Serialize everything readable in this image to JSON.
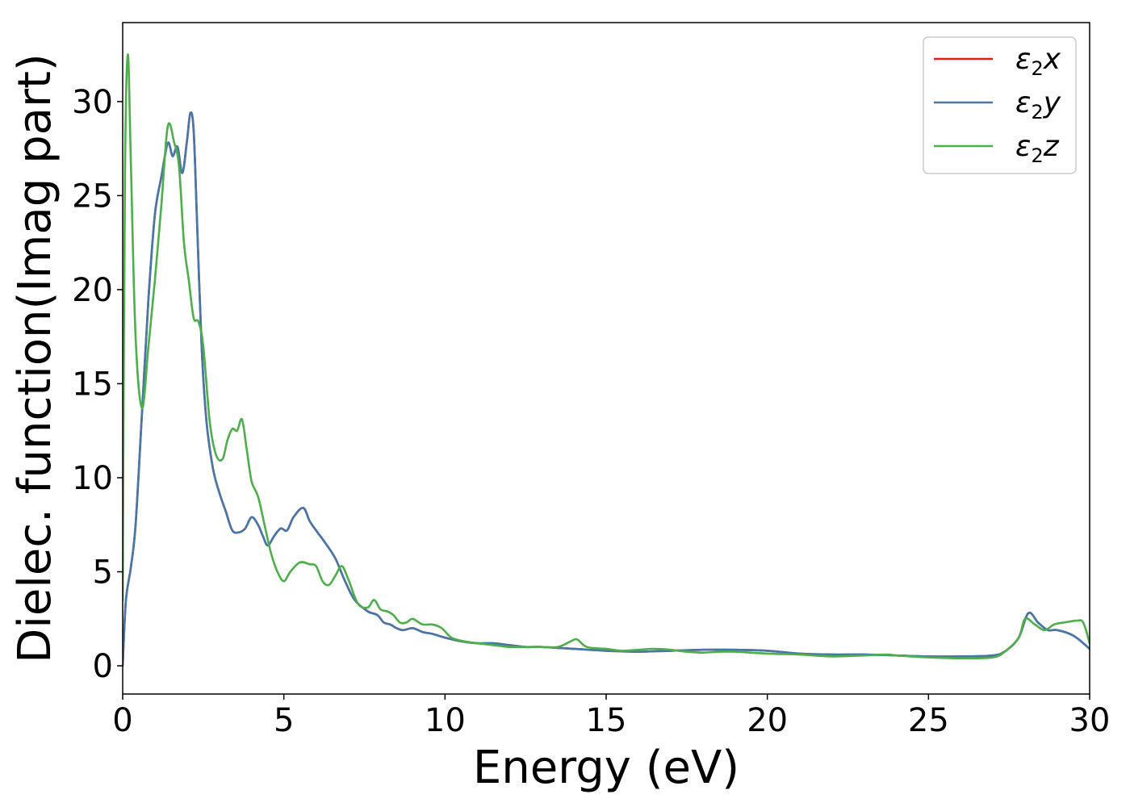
{
  "chart_data": {
    "type": "line",
    "xlabel": "Energy (eV)",
    "ylabel": "Dielec. function(Imag part)",
    "xlim": [
      0,
      30
    ],
    "ylim": [
      -1.5,
      34.2
    ],
    "xticks": [
      0,
      5,
      10,
      15,
      20,
      25,
      30
    ],
    "yticks": [
      0,
      5,
      10,
      15,
      20,
      25,
      30
    ],
    "grid": false,
    "legend_position": "top-right",
    "series": [
      {
        "name": "ε₂x",
        "legend_base": "ε",
        "legend_sub": "2",
        "legend_suffix": "x",
        "color": "#e41a1c",
        "x": [
          0,
          0.1,
          0.25,
          0.4,
          0.6,
          0.8,
          1.0,
          1.2,
          1.4,
          1.55,
          1.7,
          1.85,
          2.0,
          2.1,
          2.2,
          2.3,
          2.45,
          2.6,
          2.8,
          3.0,
          3.2,
          3.4,
          3.6,
          3.8,
          4.0,
          4.2,
          4.35,
          4.5,
          4.7,
          4.9,
          5.1,
          5.3,
          5.6,
          5.8,
          6.0,
          6.3,
          6.6,
          6.9,
          7.2,
          7.6,
          7.9,
          8.1,
          8.3,
          8.5,
          8.7,
          9.0,
          9.3,
          9.6,
          10.0,
          10.5,
          11.0,
          11.5,
          12.0,
          12.5,
          13.0,
          14.0,
          15.0,
          16.0,
          17.0,
          18.0,
          19.0,
          20.0,
          21.0,
          22.0,
          23.0,
          24.0,
          25.0,
          26.0,
          27.0,
          27.4,
          27.8,
          28.1,
          28.4,
          28.7,
          29.0,
          29.5,
          30.0
        ],
        "values": [
          0,
          3.5,
          5.2,
          7.5,
          13.5,
          19.5,
          24,
          26,
          27.8,
          27.1,
          27.6,
          26.2,
          28,
          29.4,
          28.5,
          24,
          17,
          13,
          10.5,
          9.2,
          8.2,
          7.2,
          7.1,
          7.3,
          7.9,
          7.5,
          6.9,
          6.4,
          6.9,
          7.3,
          7.2,
          7.9,
          8.4,
          7.7,
          7.2,
          6.5,
          5.7,
          4.5,
          3.5,
          2.9,
          2.7,
          2.3,
          2.2,
          2.0,
          1.9,
          2.0,
          1.8,
          1.7,
          1.5,
          1.3,
          1.2,
          1.2,
          1.1,
          1.0,
          1.0,
          0.9,
          0.8,
          0.75,
          0.8,
          0.85,
          0.85,
          0.8,
          0.65,
          0.6,
          0.6,
          0.55,
          0.5,
          0.5,
          0.55,
          0.8,
          1.5,
          2.8,
          2.3,
          1.9,
          1.9,
          1.6,
          0.9
        ]
      },
      {
        "name": "ε₂y",
        "legend_base": "ε",
        "legend_sub": "2",
        "legend_suffix": "y",
        "color": "#4477aa",
        "x": [
          0,
          0.1,
          0.25,
          0.4,
          0.6,
          0.8,
          1.0,
          1.2,
          1.4,
          1.55,
          1.7,
          1.85,
          2.0,
          2.1,
          2.2,
          2.3,
          2.45,
          2.6,
          2.8,
          3.0,
          3.2,
          3.4,
          3.6,
          3.8,
          4.0,
          4.2,
          4.35,
          4.5,
          4.7,
          4.9,
          5.1,
          5.3,
          5.6,
          5.8,
          6.0,
          6.3,
          6.6,
          6.9,
          7.2,
          7.6,
          7.9,
          8.1,
          8.3,
          8.5,
          8.7,
          9.0,
          9.3,
          9.6,
          10.0,
          10.5,
          11.0,
          11.5,
          12.0,
          12.5,
          13.0,
          14.0,
          15.0,
          16.0,
          17.0,
          18.0,
          19.0,
          20.0,
          21.0,
          22.0,
          23.0,
          24.0,
          25.0,
          26.0,
          27.0,
          27.4,
          27.8,
          28.1,
          28.4,
          28.7,
          29.0,
          29.5,
          30.0
        ],
        "values": [
          0,
          3.5,
          5.2,
          7.5,
          13.5,
          19.5,
          24,
          26,
          27.8,
          27.1,
          27.6,
          26.2,
          28,
          29.4,
          28.5,
          24,
          17,
          13,
          10.5,
          9.2,
          8.2,
          7.2,
          7.1,
          7.3,
          7.9,
          7.5,
          6.9,
          6.4,
          6.9,
          7.3,
          7.2,
          7.9,
          8.4,
          7.7,
          7.2,
          6.5,
          5.7,
          4.5,
          3.5,
          2.9,
          2.7,
          2.3,
          2.2,
          2.0,
          1.9,
          2.0,
          1.8,
          1.7,
          1.5,
          1.3,
          1.2,
          1.2,
          1.1,
          1.0,
          1.0,
          0.9,
          0.8,
          0.75,
          0.8,
          0.85,
          0.85,
          0.8,
          0.65,
          0.6,
          0.6,
          0.55,
          0.5,
          0.5,
          0.55,
          0.8,
          1.5,
          2.8,
          2.3,
          1.9,
          1.9,
          1.6,
          0.9
        ]
      },
      {
        "name": "ε₂z",
        "legend_base": "ε",
        "legend_sub": "2",
        "legend_suffix": "z",
        "color": "#4daf4a",
        "x": [
          0,
          0.07,
          0.16,
          0.25,
          0.4,
          0.6,
          0.8,
          1.0,
          1.2,
          1.4,
          1.6,
          1.75,
          1.9,
          2.05,
          2.2,
          2.35,
          2.5,
          2.7,
          2.9,
          3.1,
          3.25,
          3.4,
          3.55,
          3.7,
          3.85,
          4.0,
          4.2,
          4.4,
          4.6,
          4.8,
          5.0,
          5.2,
          5.5,
          5.8,
          6.0,
          6.2,
          6.4,
          6.6,
          6.8,
          7.0,
          7.3,
          7.6,
          7.8,
          8.0,
          8.2,
          8.4,
          8.6,
          8.8,
          9.0,
          9.3,
          9.6,
          9.9,
          10.2,
          10.6,
          11.0,
          11.5,
          12.0,
          12.5,
          13.0,
          13.5,
          13.9,
          14.1,
          14.4,
          15.0,
          15.5,
          16.0,
          16.5,
          17.0,
          17.5,
          18.0,
          18.5,
          19.0,
          20.0,
          21.0,
          22.0,
          23.0,
          23.7,
          24.0,
          25.0,
          26.0,
          27.0,
          27.4,
          27.8,
          28.0,
          28.3,
          28.6,
          28.9,
          29.2,
          29.6,
          29.8,
          30.0
        ],
        "values": [
          3.5,
          26,
          32.5,
          27,
          17.5,
          13.7,
          17,
          20.5,
          24.5,
          28.7,
          27.8,
          26.5,
          22.5,
          20.5,
          18.5,
          18.3,
          17,
          13,
          11.2,
          11.0,
          12.0,
          12.6,
          12.5,
          13.1,
          11.5,
          9.8,
          9.0,
          7.5,
          6.0,
          5.0,
          4.5,
          5.0,
          5.5,
          5.4,
          5.3,
          4.5,
          4.3,
          4.8,
          5.3,
          4.6,
          3.3,
          3.1,
          3.5,
          3.0,
          2.9,
          2.7,
          2.3,
          2.3,
          2.5,
          2.2,
          2.2,
          2.0,
          1.5,
          1.3,
          1.2,
          1.1,
          1.0,
          1.0,
          1.0,
          1.0,
          1.3,
          1.4,
          1.0,
          0.9,
          0.8,
          0.85,
          0.9,
          0.85,
          0.75,
          0.7,
          0.75,
          0.75,
          0.65,
          0.6,
          0.5,
          0.55,
          0.6,
          0.55,
          0.45,
          0.4,
          0.45,
          0.8,
          1.5,
          2.5,
          2.2,
          1.9,
          2.2,
          2.3,
          2.4,
          2.3,
          1.2
        ]
      }
    ]
  }
}
